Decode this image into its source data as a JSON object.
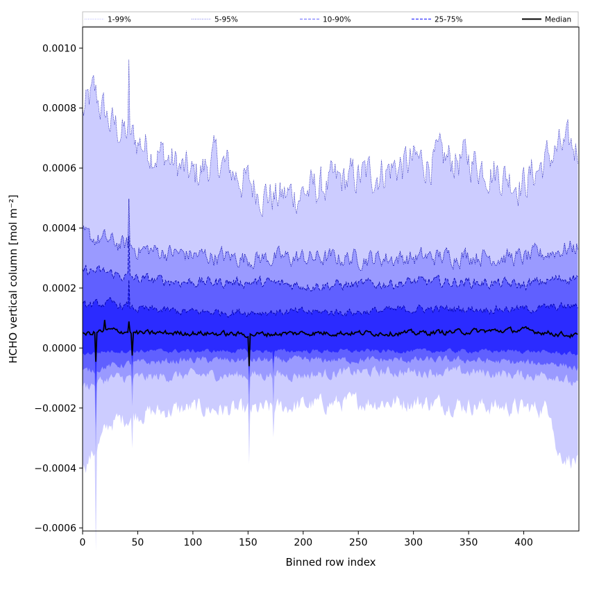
{
  "chart_data": {
    "type": "area",
    "xlabel": "Binned row index",
    "ylabel": "HCHO vertical column [mol m⁻²]",
    "xlim": [
      0,
      450
    ],
    "ylim": [
      -0.00061,
      0.00107
    ],
    "x_ticks": [
      0,
      50,
      100,
      150,
      200,
      250,
      300,
      350,
      400
    ],
    "x_tick_labels": [
      "0",
      "50",
      "100",
      "150",
      "200",
      "250",
      "300",
      "350",
      "400"
    ],
    "y_ticks": [
      -0.0006,
      -0.0004,
      -0.0002,
      0.0,
      0.0002,
      0.0004,
      0.0006,
      0.0008,
      0.001
    ],
    "y_tick_labels": [
      "−0.0006",
      "−0.0004",
      "−0.0002",
      "0.0000",
      "0.0002",
      "0.0004",
      "0.0006",
      "0.0008",
      "0.0010"
    ],
    "legend_position": "top, spanning full width",
    "n_points": 450,
    "x_step": 1,
    "series": [
      {
        "name": "1-99%",
        "style": "dotted",
        "fill": "#ccccff",
        "upper_anchors": [
          [
            0,
            0.00078
          ],
          [
            10,
            0.00085
          ],
          [
            25,
            0.00075
          ],
          [
            45,
            0.0007
          ],
          [
            70,
            0.00065
          ],
          [
            100,
            0.00057
          ],
          [
            120,
            0.00063
          ],
          [
            150,
            0.00055
          ],
          [
            175,
            0.0005
          ],
          [
            200,
            0.00052
          ],
          [
            250,
            0.00057
          ],
          [
            300,
            0.00062
          ],
          [
            350,
            0.00063
          ],
          [
            380,
            0.00058
          ],
          [
            400,
            0.00055
          ],
          [
            430,
            0.00066
          ],
          [
            449,
            0.00067
          ]
        ],
        "lower_anchors": [
          [
            0,
            -0.0004
          ],
          [
            10,
            -0.00035
          ],
          [
            25,
            -0.00025
          ],
          [
            50,
            -0.00022
          ],
          [
            100,
            -0.0002
          ],
          [
            150,
            -0.00021
          ],
          [
            200,
            -0.00019
          ],
          [
            250,
            -0.00018
          ],
          [
            300,
            -0.00018
          ],
          [
            350,
            -0.00019
          ],
          [
            400,
            -0.0002
          ],
          [
            425,
            -0.0002
          ],
          [
            430,
            -0.00035
          ],
          [
            449,
            -0.00038
          ]
        ]
      },
      {
        "name": "5-95%",
        "style": "dotted",
        "fill": "#9a9aff",
        "upper_anchors": [
          [
            0,
            0.00037
          ],
          [
            20,
            0.00036
          ],
          [
            50,
            0.00033
          ],
          [
            100,
            0.00031
          ],
          [
            150,
            0.0003
          ],
          [
            200,
            0.0003
          ],
          [
            250,
            0.0003
          ],
          [
            300,
            0.0003
          ],
          [
            350,
            0.00031
          ],
          [
            400,
            0.0003
          ],
          [
            449,
            0.00034
          ]
        ],
        "lower_anchors": [
          [
            0,
            -0.00013
          ],
          [
            25,
            -0.0001
          ],
          [
            50,
            -0.0001
          ],
          [
            100,
            -9e-05
          ],
          [
            150,
            -9e-05
          ],
          [
            200,
            -9e-05
          ],
          [
            250,
            -8e-05
          ],
          [
            300,
            -8e-05
          ],
          [
            350,
            -8e-05
          ],
          [
            400,
            -9e-05
          ],
          [
            430,
            -9e-05
          ],
          [
            449,
            -0.00013
          ]
        ]
      },
      {
        "name": "10-90%",
        "style": "dashed",
        "fill": "#6060ff",
        "upper_anchors": [
          [
            0,
            0.00026
          ],
          [
            25,
            0.00025
          ],
          [
            50,
            0.00023
          ],
          [
            100,
            0.00022
          ],
          [
            150,
            0.00022
          ],
          [
            200,
            0.00021
          ],
          [
            250,
            0.00021
          ],
          [
            300,
            0.00022
          ],
          [
            350,
            0.00022
          ],
          [
            400,
            0.00021
          ],
          [
            449,
            0.00024
          ]
        ],
        "lower_anchors": [
          [
            0,
            -8e-05
          ],
          [
            25,
            -6e-05
          ],
          [
            50,
            -5e-05
          ],
          [
            100,
            -4e-05
          ],
          [
            150,
            -4e-05
          ],
          [
            200,
            -4e-05
          ],
          [
            250,
            -4e-05
          ],
          [
            300,
            -4e-05
          ],
          [
            350,
            -4e-05
          ],
          [
            400,
            -5e-05
          ],
          [
            430,
            -5e-05
          ],
          [
            449,
            -7e-05
          ]
        ]
      },
      {
        "name": "25-75%",
        "style": "dashed",
        "fill": "#2b2bff",
        "upper_anchors": [
          [
            0,
            0.00014
          ],
          [
            25,
            0.00015
          ],
          [
            50,
            0.00013
          ],
          [
            100,
            0.00012
          ],
          [
            150,
            0.00012
          ],
          [
            200,
            0.00012
          ],
          [
            250,
            0.00012
          ],
          [
            300,
            0.00013
          ],
          [
            350,
            0.00013
          ],
          [
            400,
            0.00013
          ],
          [
            449,
            0.00014
          ]
        ],
        "lower_anchors": [
          [
            0,
            -2e-05
          ],
          [
            25,
            -1e-05
          ],
          [
            50,
            -1e-05
          ],
          [
            100,
            -1e-05
          ],
          [
            150,
            -1e-05
          ],
          [
            200,
            -1e-05
          ],
          [
            250,
            -1e-05
          ],
          [
            300,
            -1e-05
          ],
          [
            350,
            -1e-05
          ],
          [
            400,
            -1e-05
          ],
          [
            449,
            -2e-05
          ]
        ]
      },
      {
        "name": "Median",
        "style": "solid",
        "color": "#000000",
        "anchors": [
          [
            0,
            4.5e-05
          ],
          [
            25,
            6e-05
          ],
          [
            50,
            5e-05
          ],
          [
            100,
            5e-05
          ],
          [
            150,
            4.5e-05
          ],
          [
            200,
            5e-05
          ],
          [
            250,
            5e-05
          ],
          [
            300,
            5e-05
          ],
          [
            350,
            5.5e-05
          ],
          [
            400,
            6e-05
          ],
          [
            449,
            4e-05
          ]
        ]
      }
    ],
    "colors": {
      "band_1_99": "#ccccff",
      "band_5_95": "#9a9aff",
      "band_10_90": "#6060ff",
      "band_25_75": "#2b2bff",
      "edge_line": "#0000aa",
      "median": "#000000"
    }
  }
}
